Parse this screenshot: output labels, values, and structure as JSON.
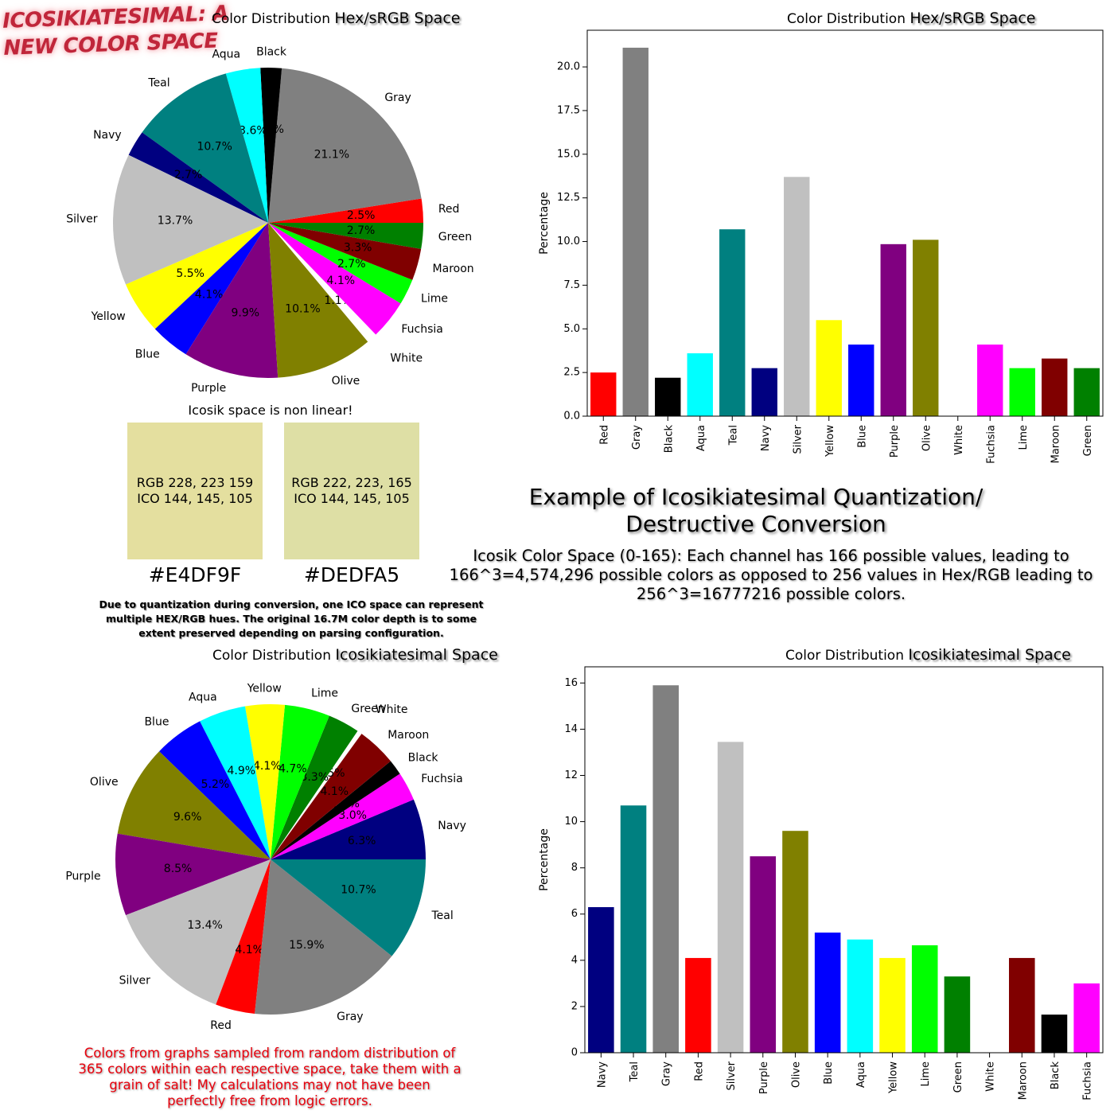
{
  "logo": {
    "line1": "ICOSIKIATESIMAL: A",
    "line2": "NEW COLOR SPACE"
  },
  "colors": {
    "Red": "#ff0000",
    "Gray": "#808080",
    "Black": "#000000",
    "Aqua": "#00ffff",
    "Teal": "#008080",
    "Navy": "#000080",
    "Silver": "#c0c0c0",
    "Yellow": "#ffff00",
    "Blue": "#0000ff",
    "Purple": "#800080",
    "Olive": "#808000",
    "White": "#ffffff",
    "Fuchsia": "#ff00ff",
    "Lime": "#00ff00",
    "Maroon": "#800000",
    "Green": "#008000"
  },
  "titles": {
    "prefix": "Color Distribution",
    "hex_space": "Hex/sRGB Space",
    "ico_space": "Icosikiatesimal Space"
  },
  "comparison": {
    "heading": "Icosik space is non linear!",
    "left": {
      "rgb": "RGB 228, 223 159",
      "ico": "ICO 144, 145, 105",
      "hex": "#E4DF9F",
      "color": "#E4DF9F"
    },
    "right": {
      "rgb": "RGB 222, 223, 165",
      "ico": "ICO 144, 145, 105",
      "hex": "#DEDFA5",
      "color": "#DEDFA5"
    },
    "note": "Due to quantization during conversion, one ICO space can represent multiple HEX/RGB hues. The original 16.7M color depth is to some extent preserved depending on parsing configuration."
  },
  "example": {
    "title_line1": "Example of Icosikiatesimal Quantization/",
    "title_line2": "Destructive Conversion",
    "desc": "Icosik Color Space (0-165): Each channel has 166 possible values, leading to 166^3=4,574,296 possible colors as opposed to 256 values in Hex/RGB leading to 256^3=16777216 possible colors."
  },
  "caveat": "Colors from graphs sampled from random distribution of 365 colors within each respective space, take them with a grain of salt! My calculations may not have been perfectly free from logic errors.",
  "chart_data": [
    {
      "id": "hex-pie",
      "type": "pie",
      "title": "Color Distribution Hex/sRGB Space",
      "categories": [
        "Red",
        "Gray",
        "Black",
        "Aqua",
        "Teal",
        "Navy",
        "Silver",
        "Yellow",
        "Blue",
        "Purple",
        "Olive",
        "White",
        "Fuchsia",
        "Lime",
        "Maroon",
        "Green"
      ],
      "values": [
        2.5,
        21.1,
        2.2,
        3.6,
        10.7,
        2.7,
        13.7,
        5.5,
        4.1,
        9.9,
        10.1,
        1.1,
        4.1,
        2.7,
        3.3,
        2.7
      ],
      "value_labels": [
        "2.5%",
        "21.1%",
        "2.2%",
        "3.6%",
        "10.7%",
        "2.7%",
        "13.7%",
        "5.5%",
        "4.1%",
        "9.9%",
        "10.1%",
        "1.1%",
        "4.1%",
        "2.7%",
        "3.3%",
        "2.7%"
      ],
      "exploded": "White"
    },
    {
      "id": "hex-bar",
      "type": "bar",
      "title": "Color Distribution Hex/sRGB Space",
      "ylabel": "Percentage",
      "ylim": [
        0,
        22.1
      ],
      "yticks": [
        "0.0",
        "2.5",
        "5.0",
        "7.5",
        "10.0",
        "12.5",
        "15.0",
        "17.5",
        "20.0"
      ],
      "ytick_values": [
        0,
        2.5,
        5,
        7.5,
        10,
        12.5,
        15,
        17.5,
        20
      ],
      "categories": [
        "Red",
        "Gray",
        "Black",
        "Aqua",
        "Teal",
        "Navy",
        "Silver",
        "Yellow",
        "Blue",
        "Purple",
        "Olive",
        "White",
        "Fuchsia",
        "Lime",
        "Maroon",
        "Green"
      ],
      "values": [
        2.5,
        21.1,
        2.2,
        3.6,
        10.7,
        2.75,
        13.7,
        5.5,
        4.1,
        9.85,
        10.1,
        1.1,
        4.1,
        2.75,
        3.3,
        2.75
      ]
    },
    {
      "id": "ico-pie",
      "type": "pie",
      "title": "Color Distribution Icosikiatesimal Space",
      "categories": [
        "Navy",
        "Fuchsia",
        "Black",
        "Maroon",
        "White",
        "Green",
        "Lime",
        "Yellow",
        "Aqua",
        "Blue",
        "Olive",
        "Purple",
        "Silver",
        "Red",
        "Gray",
        "Teal"
      ],
      "values": [
        6.3,
        3.0,
        1.6,
        4.1,
        0.5,
        3.3,
        4.7,
        4.1,
        4.9,
        5.2,
        9.6,
        8.5,
        13.4,
        4.1,
        15.9,
        10.7
      ],
      "value_labels": [
        "6.3%",
        "3.0%",
        "1.6%",
        "4.1%",
        "0.5%",
        "3.3%",
        "4.7%",
        "4.1%",
        "4.9%",
        "5.2%",
        "9.6%",
        "8.5%",
        "13.4%",
        "4.1%",
        "15.9%",
        "10.7%"
      ],
      "exploded": "White"
    },
    {
      "id": "ico-bar",
      "type": "bar",
      "title": "Color Distribution Icosikiatesimal Space",
      "ylabel": "Percentage",
      "ylim": [
        0,
        16.7
      ],
      "yticks": [
        "0",
        "2",
        "4",
        "6",
        "8",
        "10",
        "12",
        "14",
        "16"
      ],
      "ytick_values": [
        0,
        2,
        4,
        6,
        8,
        10,
        12,
        14,
        16
      ],
      "categories": [
        "Navy",
        "Teal",
        "Gray",
        "Red",
        "Silver",
        "Purple",
        "Olive",
        "Blue",
        "Aqua",
        "Yellow",
        "Lime",
        "Green",
        "White",
        "Maroon",
        "Black",
        "Fuchsia"
      ],
      "values": [
        6.3,
        10.7,
        15.9,
        4.1,
        13.45,
        8.5,
        9.6,
        5.2,
        4.9,
        4.1,
        4.65,
        3.3,
        0.5,
        4.1,
        1.65,
        3.0
      ]
    }
  ]
}
